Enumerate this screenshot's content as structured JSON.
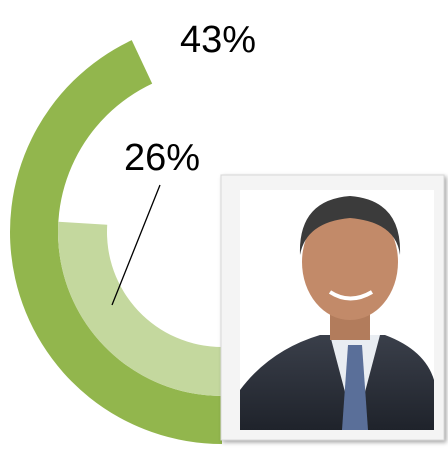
{
  "chart_data": {
    "type": "radial-bar",
    "series": [
      {
        "color": "#92b64d",
        "values": [
          43
        ],
        "value_labels": [
          "43%"
        ]
      },
      {
        "color": "#c4d89e",
        "values": [
          26
        ],
        "value_labels": [
          "26%"
        ]
      }
    ]
  }
}
